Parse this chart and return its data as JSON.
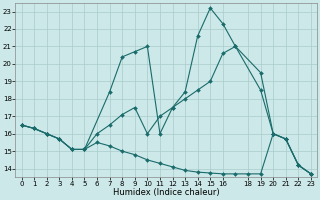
{
  "xlabel": "Humidex (Indice chaleur)",
  "xlim": [
    -0.5,
    23.5
  ],
  "ylim": [
    13.5,
    23.5
  ],
  "yticks": [
    14,
    15,
    16,
    17,
    18,
    19,
    20,
    21,
    22,
    23
  ],
  "xticks": [
    0,
    1,
    2,
    3,
    4,
    5,
    6,
    7,
    8,
    9,
    10,
    11,
    12,
    13,
    14,
    15,
    16,
    18,
    19,
    20,
    21,
    22,
    23
  ],
  "bg_color": "#cce8e8",
  "grid_color": "#b8d8d8",
  "line_color": "#1a6b6b",
  "line1_x": [
    0,
    1,
    2,
    3,
    4,
    5,
    7,
    8,
    9,
    10,
    11,
    12,
    13,
    14,
    15,
    16,
    17,
    19,
    20,
    21,
    22,
    23
  ],
  "line1_y": [
    16.5,
    16.3,
    16.0,
    15.7,
    15.1,
    15.1,
    18.4,
    20.4,
    20.7,
    21.0,
    16.0,
    17.5,
    18.4,
    21.6,
    23.2,
    22.3,
    21.0,
    19.5,
    16.0,
    15.7,
    14.2,
    13.7
  ],
  "line2_x": [
    0,
    1,
    2,
    3,
    4,
    5,
    6,
    7,
    8,
    9,
    10,
    11,
    12,
    13,
    14,
    15,
    16,
    17,
    19,
    20,
    21,
    22,
    23
  ],
  "line2_y": [
    16.5,
    16.3,
    16.0,
    15.7,
    15.1,
    15.1,
    16.0,
    16.5,
    17.1,
    17.5,
    16.0,
    17.0,
    17.5,
    18.0,
    18.5,
    19.0,
    20.6,
    21.0,
    18.5,
    16.0,
    15.7,
    14.2,
    13.7
  ],
  "line3_x": [
    0,
    1,
    2,
    3,
    4,
    5,
    6,
    7,
    8,
    9,
    10,
    11,
    12,
    13,
    14,
    15,
    16,
    17,
    18,
    19,
    20,
    21,
    22,
    23
  ],
  "line3_y": [
    16.5,
    16.3,
    16.0,
    15.7,
    15.1,
    15.1,
    15.5,
    15.3,
    15.0,
    14.8,
    14.5,
    14.3,
    14.1,
    13.9,
    13.8,
    13.75,
    13.7,
    13.7,
    13.7,
    13.7,
    16.0,
    15.7,
    14.2,
    13.7
  ]
}
